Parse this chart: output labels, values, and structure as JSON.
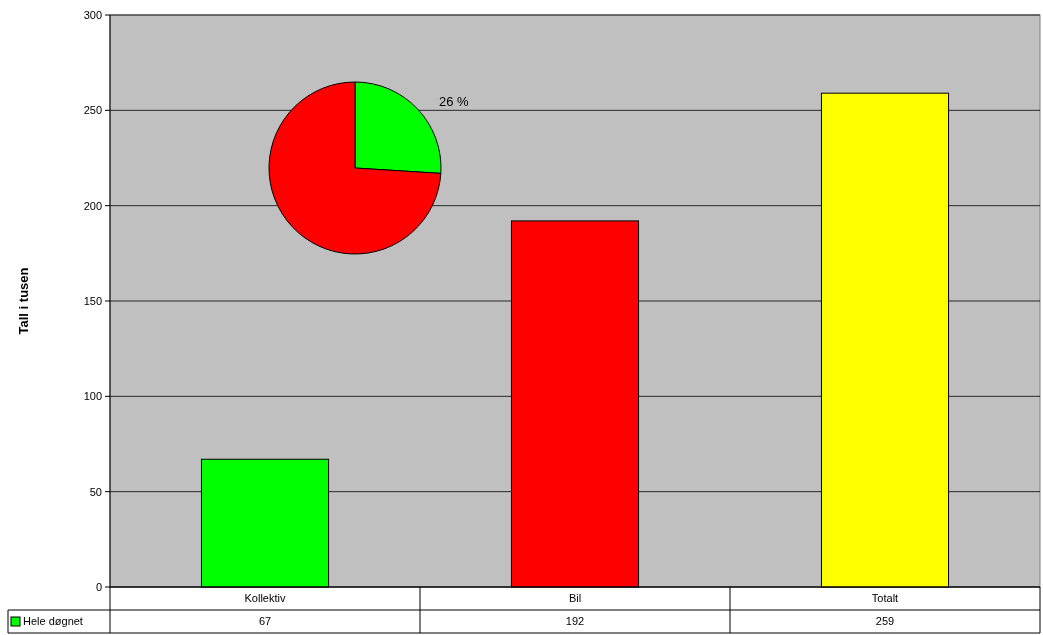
{
  "chart_data": [
    {
      "type": "bar",
      "ylabel": "Tall i tusen",
      "categories": [
        "Kollektiv",
        "Bil",
        "Totalt"
      ],
      "series": [
        {
          "name": "Hele døgnet",
          "color": "#00ff00",
          "colors": [
            "#00ff00",
            "#ff0000",
            "#ffff00"
          ],
          "values": [
            67,
            192,
            259
          ]
        }
      ],
      "ylim": [
        0,
        300
      ],
      "yticks": [
        0,
        50,
        100,
        150,
        200,
        250,
        300
      ],
      "grid": "y",
      "data_labels": true,
      "legend": "bottom"
    },
    {
      "type": "pie",
      "categories": [
        null,
        null
      ],
      "values": [
        26,
        74
      ],
      "colors": [
        "#00ff00",
        "#ff0000"
      ],
      "value_labels": [
        "26 %",
        null
      ]
    }
  ]
}
